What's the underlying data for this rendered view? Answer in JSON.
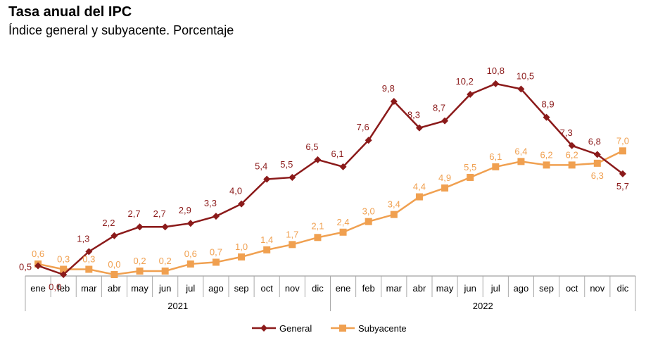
{
  "chart_data": {
    "type": "line",
    "title": "Tasa anual del IPC",
    "subtitle": "Índice general y subyacente. Porcentaje",
    "categories": [
      "ene",
      "feb",
      "mar",
      "abr",
      "may",
      "jun",
      "jul",
      "ago",
      "sep",
      "oct",
      "nov",
      "dic",
      "ene",
      "feb",
      "mar",
      "abr",
      "may",
      "jun",
      "jul",
      "ago",
      "sep",
      "oct",
      "nov",
      "dic"
    ],
    "groups": [
      {
        "label": "2021",
        "count": 12
      },
      {
        "label": "2022",
        "count": 12
      }
    ],
    "ylim": [
      0,
      11
    ],
    "grid": false,
    "legend_placement": "bottom",
    "series": [
      {
        "name": "General",
        "color": "#8b1a1a",
        "marker": "diamond",
        "values": [
          0.5,
          0.0,
          1.3,
          2.2,
          2.7,
          2.7,
          2.9,
          3.3,
          4.0,
          5.4,
          5.5,
          6.5,
          6.1,
          7.6,
          9.8,
          8.3,
          8.7,
          10.2,
          10.8,
          10.5,
          8.9,
          7.3,
          6.8,
          5.7
        ],
        "labels": [
          "0,5",
          "0,0",
          "1,3",
          "2,2",
          "2,7",
          "2,7",
          "2,9",
          "3,3",
          "4,0",
          "5,4",
          "5,5",
          "6,5",
          "6,1",
          "7,6",
          "9,8",
          "8,3",
          "8,7",
          "10,2",
          "10,8",
          "10,5",
          "8,9",
          "7,3",
          "6,8",
          "5,7"
        ]
      },
      {
        "name": "Subyacente",
        "color": "#f0a050",
        "marker": "square",
        "values": [
          0.6,
          0.3,
          0.3,
          0.0,
          0.2,
          0.2,
          0.6,
          0.7,
          1.0,
          1.4,
          1.7,
          2.1,
          2.4,
          3.0,
          3.4,
          4.4,
          4.9,
          5.5,
          6.1,
          6.4,
          6.2,
          6.2,
          6.3,
          7.0
        ],
        "labels": [
          "0,6",
          "0,3",
          "0,3",
          "0,0",
          "0,2",
          "0,2",
          "0,6",
          "0,7",
          "1,0",
          "1,4",
          "1,7",
          "2,1",
          "2,4",
          "3,0",
          "3,4",
          "4,4",
          "4,9",
          "5,5",
          "6,1",
          "6,4",
          "6,2",
          "6,2",
          "6,3",
          "7,0"
        ]
      }
    ]
  }
}
